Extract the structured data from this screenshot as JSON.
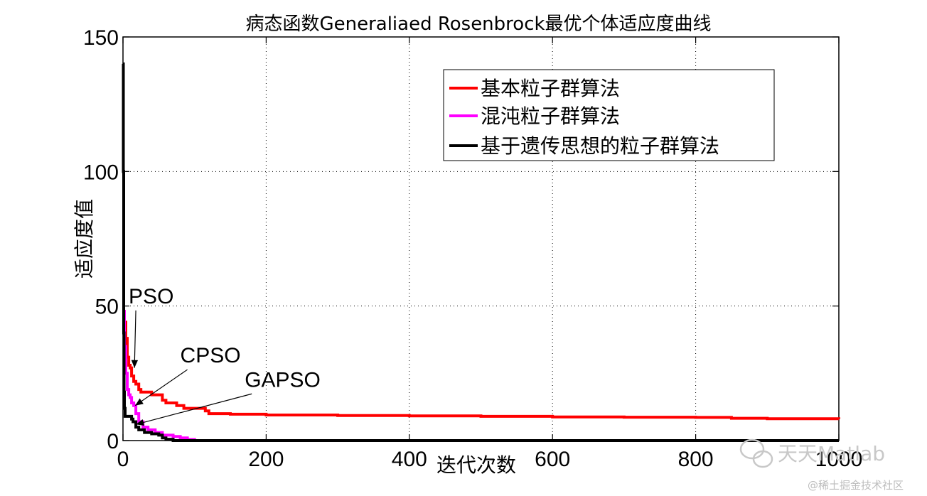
{
  "chart_data": {
    "type": "line",
    "title": "病态函数Generaliaed Rosenbrock最优个体适应度曲线",
    "xlabel": "迭代次数",
    "ylabel": "适应度值",
    "xlim": [
      0,
      1000
    ],
    "ylim": [
      0,
      150
    ],
    "xticks": [
      0,
      200,
      400,
      600,
      800,
      1000
    ],
    "yticks": [
      0,
      50,
      100,
      150
    ],
    "xtick_labels": [
      "0",
      "200",
      "400",
      "600",
      "800",
      "1000"
    ],
    "ytick_labels": [
      "0",
      "50",
      "100",
      "150"
    ],
    "grid": true,
    "legend_position": "top-right",
    "series": [
      {
        "name": "基本粒子群算法",
        "color": "#ff0000",
        "x": [
          0,
          2,
          4,
          6,
          8,
          10,
          12,
          15,
          18,
          22,
          25,
          35,
          40,
          55,
          60,
          75,
          85,
          100,
          115,
          120,
          150,
          200,
          300,
          400,
          500,
          600,
          700,
          800,
          850,
          900,
          1000
        ],
        "y": [
          48,
          44,
          38,
          31,
          28,
          27,
          24,
          22,
          21,
          19,
          18,
          18,
          17,
          15,
          14,
          13,
          12,
          12,
          11,
          10,
          9.8,
          9.5,
          9.3,
          9.2,
          9.0,
          8.8,
          8.7,
          8.6,
          8.3,
          8.1,
          8.0
        ]
      },
      {
        "name": "混沌粒子群算法",
        "color": "#ff00ff",
        "x": [
          0,
          2,
          4,
          6,
          8,
          10,
          12,
          15,
          18,
          22,
          28,
          35,
          45,
          55,
          70,
          80,
          90,
          100,
          1000
        ],
        "y": [
          48,
          35,
          25,
          19,
          17,
          16,
          14,
          13,
          10,
          7,
          5,
          4,
          3,
          2,
          1.5,
          1,
          0.4,
          0,
          0
        ]
      },
      {
        "name": "基于遗传思想的粒子群算法",
        "color": "#000000",
        "x": [
          0,
          0.5,
          1,
          1.5,
          2,
          3,
          4,
          6,
          10,
          12,
          14,
          18,
          22,
          30,
          40,
          50,
          55,
          60,
          70,
          1000
        ],
        "y": [
          140,
          100,
          40,
          18,
          12,
          9,
          9,
          9,
          9,
          8,
          7,
          5,
          4,
          3,
          2.5,
          2,
          1,
          0.5,
          0,
          0
        ]
      }
    ],
    "annotations": [
      {
        "text": "PSO",
        "x": 8,
        "y": 51,
        "arrow_to": [
          16,
          27
        ]
      },
      {
        "text": "CPSO",
        "x": 80,
        "y": 29,
        "arrow_to": [
          17,
          13
        ]
      },
      {
        "text": "GAPSO",
        "x": 170,
        "y": 20,
        "arrow_to": [
          18,
          6
        ]
      }
    ]
  },
  "watermark": {
    "main": "天天Matlab",
    "sub": "@稀土掘金技术社区"
  }
}
